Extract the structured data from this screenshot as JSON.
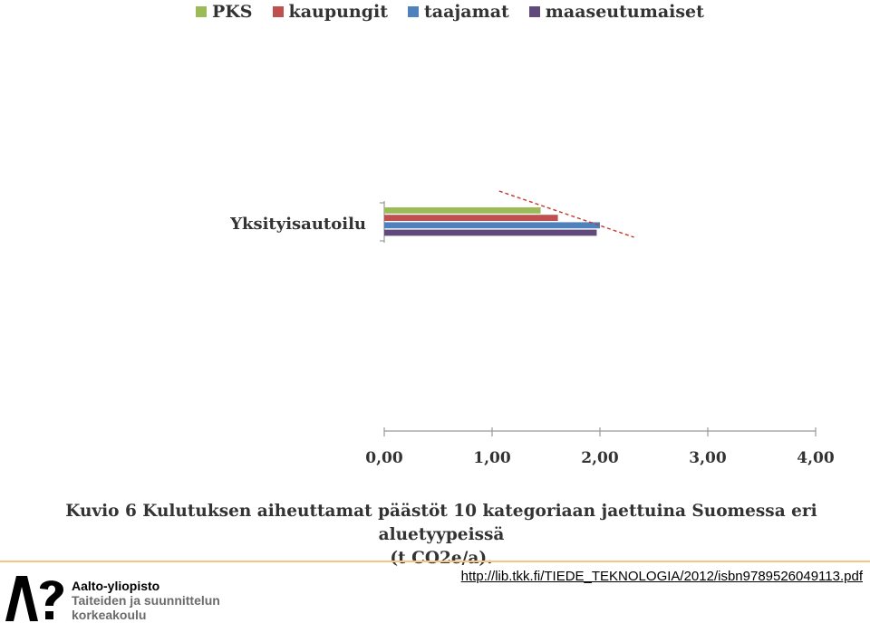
{
  "legend": {
    "items": [
      {
        "label": "PKS",
        "color": "#9bbb59"
      },
      {
        "label": "kaupungit",
        "color": "#c0504d"
      },
      {
        "label": "taajamat",
        "color": "#4f81bd"
      },
      {
        "label": "maaseutumaiset",
        "color": "#604a7b"
      }
    ]
  },
  "chart_data": {
    "type": "bar",
    "orientation": "horizontal",
    "categories": [
      "Yksityisautoilu"
    ],
    "series": [
      {
        "name": "PKS",
        "values": [
          1.45
        ],
        "color": "#9bbb59"
      },
      {
        "name": "kaupungit",
        "values": [
          1.61
        ],
        "color": "#c0504d"
      },
      {
        "name": "taajamat",
        "values": [
          2.0
        ],
        "color": "#4f81bd"
      },
      {
        "name": "maaseutumaiset",
        "values": [
          1.97
        ],
        "color": "#604a7b"
      }
    ],
    "xlim": [
      0,
      4
    ],
    "x_ticks": [
      "0,00",
      "1,00",
      "2,00",
      "3,00",
      "4,00"
    ],
    "legend_position": "top",
    "grid": false,
    "annotation": {
      "type": "dashed-line",
      "color": "#c0392b",
      "from": [
        1.2,
        0.0
      ],
      "to": [
        2.4,
        1.0
      ]
    }
  },
  "caption": {
    "line1": "Kuvio 6 Kulutuksen aiheuttamat päästöt 10 kategoriaan jaettuina Suomessa eri aluetyypeissä",
    "line2": "(t CO2e/a)."
  },
  "logo": {
    "line1": "Aalto-yliopisto",
    "line2": "Taiteiden ja suunnittelun",
    "line3": "korkeakoulu"
  },
  "source": {
    "url": "http://lib.tkk.fi/TIEDE_TEKNOLOGIA/2012/isbn9789526049113.pdf"
  }
}
